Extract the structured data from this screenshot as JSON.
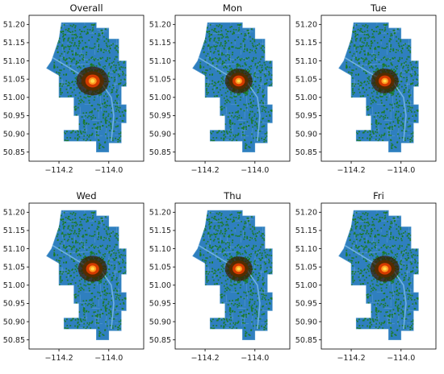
{
  "chart_data": {
    "type": "heatmap",
    "xlim": [
      -114.32,
      -113.86
    ],
    "ylim": [
      50.825,
      51.225
    ],
    "x_ticks": [
      {
        "value": -114.2,
        "label": "−114.2"
      },
      {
        "value": -114.0,
        "label": "−114.0"
      }
    ],
    "y_ticks": [
      {
        "value": 51.2,
        "label": "51.20"
      },
      {
        "value": 51.15,
        "label": "51.15"
      },
      {
        "value": 51.1,
        "label": "51.10"
      },
      {
        "value": 51.05,
        "label": "51.05"
      },
      {
        "value": 51.0,
        "label": "51.00"
      },
      {
        "value": 50.95,
        "label": "50.95"
      },
      {
        "value": 50.9,
        "label": "50.90"
      },
      {
        "value": 50.85,
        "label": "50.85"
      }
    ],
    "grid": false,
    "hotspot": {
      "lon": -114.065,
      "lat": 51.045
    },
    "colors": {
      "region": "#2f7fbf",
      "boundary": "#5fa0d0",
      "density_low": "#1a7a1a",
      "density_mid": "#5a2a00",
      "density_high": "#d43a00",
      "density_peak": "#ffd84a"
    },
    "panels": [
      {
        "title": "Overall",
        "intensity": 1.0
      },
      {
        "title": "Mon",
        "intensity": 0.85
      },
      {
        "title": "Tue",
        "intensity": 0.85
      },
      {
        "title": "Wed",
        "intensity": 0.9
      },
      {
        "title": "Thu",
        "intensity": 0.85
      },
      {
        "title": "Fri",
        "intensity": 0.9
      }
    ]
  }
}
